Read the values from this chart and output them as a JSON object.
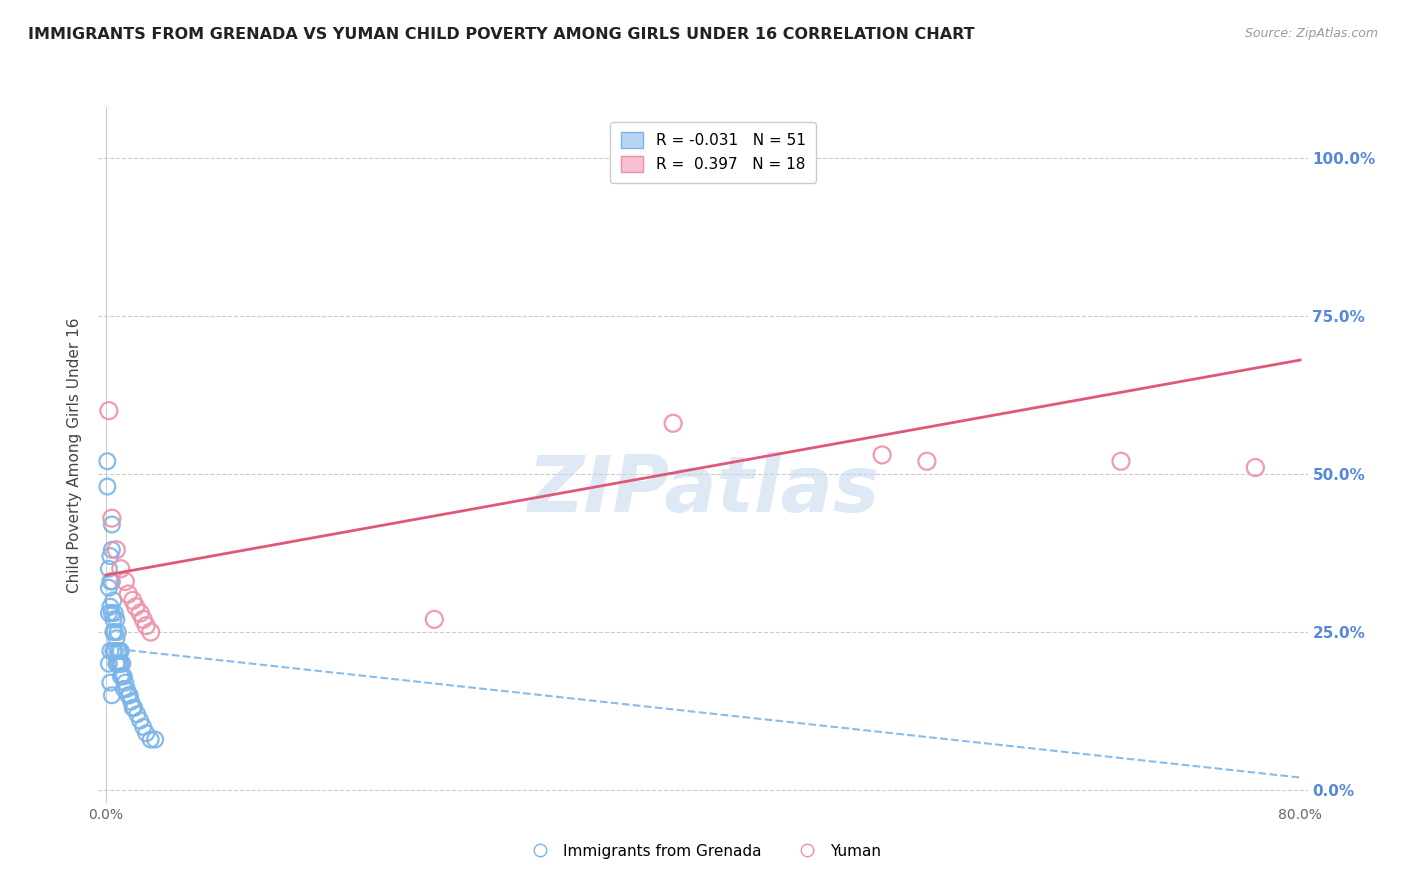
{
  "title": "IMMIGRANTS FROM GRENADA VS YUMAN CHILD POVERTY AMONG GIRLS UNDER 16 CORRELATION CHART",
  "source": "Source: ZipAtlas.com",
  "ylabel_label": "Child Poverty Among Girls Under 16",
  "x_min": 0.0,
  "x_max": 0.8,
  "y_min": 0.0,
  "y_max": 1.08,
  "ytick_vals": [
    0.0,
    0.25,
    0.5,
    0.75,
    1.0
  ],
  "ytick_labels": [
    "0.0%",
    "25.0%",
    "50.0%",
    "75.0%",
    "100.0%"
  ],
  "xtick_vals": [
    0.0,
    0.8
  ],
  "xtick_labels": [
    "0.0%",
    "80.0%"
  ],
  "legend_r_labels": [
    "R = -0.031   N = 51",
    "R =  0.397   N = 18"
  ],
  "legend_bottom": [
    "Immigrants from Grenada",
    "Yuman"
  ],
  "blue_color": "#7ab4e8",
  "pink_color": "#f090a8",
  "blue_fill": "#b8d4f4",
  "pink_fill": "#f8c0d0",
  "blue_line_color": "#88bbee",
  "pink_line_color": "#e05878",
  "watermark": "ZIPatlas",
  "blue_points_x": [
    0.001,
    0.001,
    0.002,
    0.002,
    0.002,
    0.003,
    0.003,
    0.003,
    0.003,
    0.004,
    0.004,
    0.004,
    0.004,
    0.005,
    0.005,
    0.005,
    0.005,
    0.006,
    0.006,
    0.006,
    0.007,
    0.007,
    0.007,
    0.008,
    0.008,
    0.008,
    0.009,
    0.009,
    0.01,
    0.01,
    0.01,
    0.011,
    0.011,
    0.012,
    0.012,
    0.013,
    0.014,
    0.015,
    0.016,
    0.017,
    0.018,
    0.019,
    0.021,
    0.023,
    0.025,
    0.027,
    0.03,
    0.033,
    0.002,
    0.003,
    0.004
  ],
  "blue_points_y": [
    0.52,
    0.48,
    0.35,
    0.32,
    0.28,
    0.37,
    0.33,
    0.29,
    0.22,
    0.42,
    0.38,
    0.33,
    0.28,
    0.3,
    0.27,
    0.25,
    0.22,
    0.28,
    0.25,
    0.22,
    0.27,
    0.24,
    0.2,
    0.25,
    0.22,
    0.2,
    0.22,
    0.2,
    0.22,
    0.2,
    0.18,
    0.2,
    0.18,
    0.18,
    0.16,
    0.17,
    0.16,
    0.15,
    0.15,
    0.14,
    0.13,
    0.13,
    0.12,
    0.11,
    0.1,
    0.09,
    0.08,
    0.08,
    0.2,
    0.17,
    0.15
  ],
  "pink_points_x": [
    0.002,
    0.004,
    0.007,
    0.01,
    0.013,
    0.015,
    0.018,
    0.02,
    0.023,
    0.025,
    0.027,
    0.03,
    0.22,
    0.38,
    0.52,
    0.55,
    0.68,
    0.77
  ],
  "pink_points_y": [
    0.6,
    0.43,
    0.38,
    0.35,
    0.33,
    0.31,
    0.3,
    0.29,
    0.28,
    0.27,
    0.26,
    0.25,
    0.27,
    0.58,
    0.53,
    0.52,
    0.52,
    0.51
  ],
  "blue_trend_x": [
    0.0,
    0.8
  ],
  "blue_trend_y": [
    0.225,
    0.02
  ],
  "pink_trend_x": [
    0.0,
    0.8
  ],
  "pink_trend_y": [
    0.34,
    0.68
  ]
}
